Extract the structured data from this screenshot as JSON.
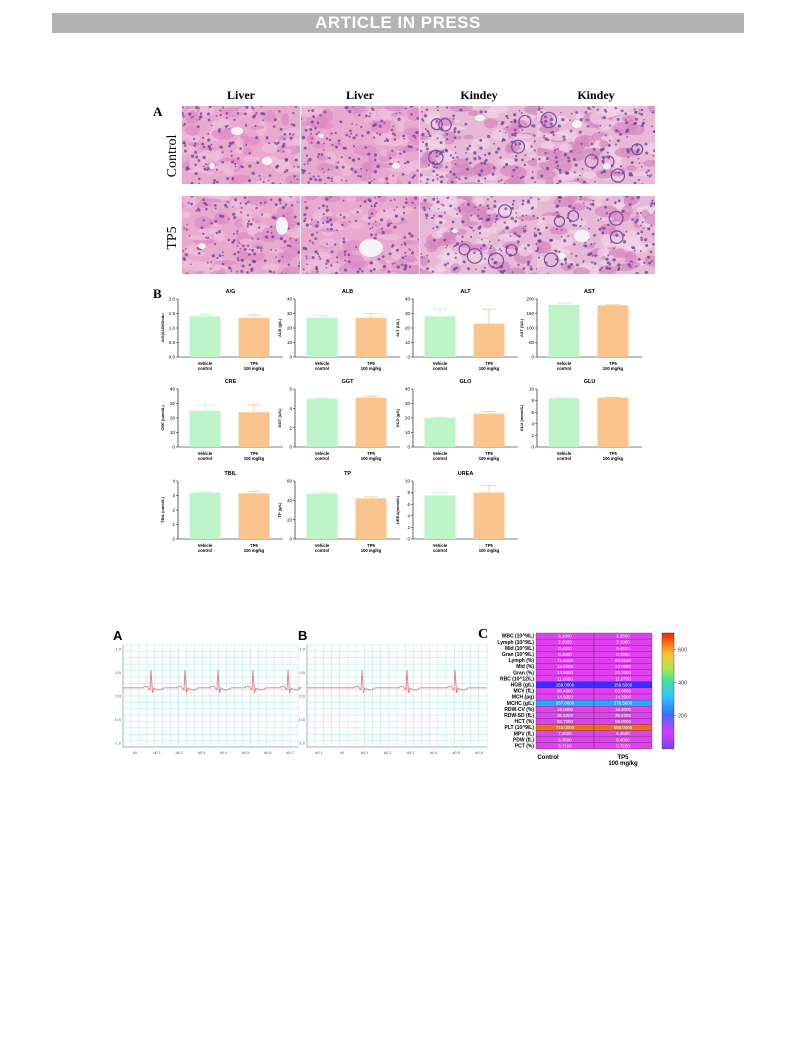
{
  "banner": "ARTICLE IN PRESS",
  "panelA": {
    "letter": "A",
    "columns": [
      "Liver",
      "Liver",
      "Kindey",
      "Kindey"
    ],
    "rows": [
      "Control",
      "TP5"
    ]
  },
  "panelB": {
    "letter": "B",
    "group_labels": [
      "Vehicle\ncontrol",
      "TP5\n100 mg/kg"
    ]
  },
  "chart_data": [
    {
      "type": "bar",
      "title": "A/G",
      "ylabel": "A/G(ALB/Globu",
      "categories": [
        "Vehicle control",
        "TP5 100 mg/kg"
      ],
      "values": [
        1.4,
        1.35
      ],
      "errors": [
        0.07,
        0.1
      ],
      "ylim": [
        0,
        2.0
      ],
      "yticks": [
        "0.0",
        "0.5",
        "1.0",
        "1.5",
        "2.0"
      ]
    },
    {
      "type": "bar",
      "title": "ALB",
      "ylabel": "ALB (g/L)",
      "categories": [
        "Vehicle control",
        "TP5 100 mg/kg"
      ],
      "values": [
        27,
        27
      ],
      "errors": [
        1.5,
        3
      ],
      "ylim": [
        0,
        40
      ],
      "yticks": [
        "0",
        "10",
        "20",
        "30",
        "40"
      ]
    },
    {
      "type": "bar",
      "title": "ALT",
      "ylabel": "ALT (U/L)",
      "categories": [
        "Vehicle control",
        "TP5 100 mg/kg"
      ],
      "values": [
        28,
        23
      ],
      "errors": [
        5,
        10
      ],
      "ylim": [
        0,
        40
      ],
      "yticks": [
        "0",
        "10",
        "20",
        "30",
        "40"
      ]
    },
    {
      "type": "bar",
      "title": "AST",
      "ylabel": "AST (U/L)",
      "categories": [
        "Vehicle control",
        "TP5 100 mg/kg"
      ],
      "values": [
        180,
        178
      ],
      "errors": [
        6,
        2
      ],
      "ylim": [
        0,
        200
      ],
      "yticks": [
        "0",
        "50",
        "100",
        "150",
        "200"
      ]
    },
    {
      "type": "bar",
      "title": "CRE",
      "ylabel": "CRE (umol/L)",
      "categories": [
        "Vehicle control",
        "TP5 100 mg/kg"
      ],
      "values": [
        25,
        24
      ],
      "errors": [
        4,
        5
      ],
      "ylim": [
        0,
        40
      ],
      "yticks": [
        "0",
        "10",
        "20",
        "30",
        "40"
      ]
    },
    {
      "type": "bar",
      "title": "GGT",
      "ylabel": "GGT (U/L)",
      "categories": [
        "Vehicle control",
        "TP5 100 mg/kg"
      ],
      "values": [
        5.0,
        5.1
      ],
      "errors": [
        0.05,
        0.15
      ],
      "ylim": [
        0,
        6
      ],
      "yticks": [
        "0",
        "2",
        "4",
        "6"
      ]
    },
    {
      "type": "bar",
      "title": "GLO",
      "ylabel": "GLO (g/L)",
      "categories": [
        "Vehicle control",
        "TP5 100 mg/kg"
      ],
      "values": [
        20,
        23
      ],
      "errors": [
        0.5,
        1.5
      ],
      "ylim": [
        0,
        40
      ],
      "yticks": [
        "0",
        "10",
        "20",
        "30",
        "40"
      ]
    },
    {
      "type": "bar",
      "title": "GLU",
      "ylabel": "GLU (mmol/L)",
      "categories": [
        "Vehicle control",
        "TP5 100 mg/kg"
      ],
      "values": [
        8.4,
        8.5
      ],
      "errors": [
        0.05,
        0.05
      ],
      "ylim": [
        0,
        10
      ],
      "yticks": [
        "0",
        "2",
        "4",
        "6",
        "8",
        "10"
      ]
    },
    {
      "type": "bar",
      "title": "TBIL",
      "ylabel": "TBIL (umol/L)",
      "categories": [
        "Vehicle control",
        "TP5 100 mg/kg"
      ],
      "values": [
        3.2,
        3.15
      ],
      "errors": [
        0.05,
        0.15
      ],
      "ylim": [
        0,
        4
      ],
      "yticks": [
        "0",
        "1",
        "2",
        "3",
        "4"
      ]
    },
    {
      "type": "bar",
      "title": "TP",
      "ylabel": "TP (g/L)",
      "categories": [
        "Vehicle control",
        "TP5 100 mg/kg"
      ],
      "values": [
        47,
        42
      ],
      "errors": [
        1.5,
        1.5
      ],
      "ylim": [
        0,
        60
      ],
      "yticks": [
        "0",
        "20",
        "40",
        "60"
      ]
    },
    {
      "type": "bar",
      "title": "UREA",
      "ylabel": "UREA(mmol/L)",
      "categories": [
        "Vehicle control",
        "TP5 100 mg/kg"
      ],
      "values": [
        7.5,
        8.0
      ],
      "errors": [
        0.5,
        1.2
      ],
      "ylim": [
        0,
        10
      ],
      "yticks": [
        "0",
        "2",
        "4",
        "6",
        "8",
        "10"
      ]
    }
  ],
  "ecg": {
    "A": {
      "letter": "A",
      "yticks": [
        "1.0",
        "0.5",
        "0.0",
        "-0.5",
        "-1.0"
      ],
      "xticks": [
        "d0",
        "d0.1",
        "d0.2",
        "d0.3",
        "d0.4",
        "d0.5",
        "d0.6",
        "d0.7"
      ]
    },
    "B": {
      "letter": "B",
      "yticks": [
        "1.0",
        "0.5",
        "0.0",
        "-0.5",
        "-1.0"
      ],
      "xticks": [
        "d0.1",
        "d0",
        "d0.1",
        "d0.2",
        "d0.3",
        "d0.4",
        "d0.5",
        "d0.6"
      ]
    }
  },
  "heatmap": {
    "letter": "C",
    "columns": [
      "Control",
      "TP5\n100 mg/kg"
    ],
    "colorbar_ticks": [
      "600",
      "400",
      "200"
    ],
    "rows": [
      {
        "label": "WBC (10^9/L)",
        "values": [
          "3.1000",
          "2.2500"
        ]
      },
      {
        "label": "Lymph (10^9/L)",
        "values": [
          "2.2000",
          "2.1000"
        ]
      },
      {
        "label": "Mid (10^9/L)",
        "values": [
          "0.4000",
          "0.4500"
        ]
      },
      {
        "label": "Gran (10^9/L)",
        "values": [
          "0.3000",
          "0.7000"
        ]
      },
      {
        "label": "Lymph (%)",
        "values": [
          "71.0000",
          "68.0000"
        ]
      },
      {
        "label": "Mid (%)",
        "values": [
          "14.0000",
          "13.0000"
        ]
      },
      {
        "label": "Gran (%)",
        "values": [
          "14.5000",
          "23.3000"
        ]
      },
      {
        "label": "RBC (10^12/L)",
        "values": [
          "11.0000",
          "11.8700"
        ]
      },
      {
        "label": "HGB (g/L)",
        "values": [
          "159.0000",
          "158.5000"
        ]
      },
      {
        "label": "MCV (fL)",
        "values": [
          "50.4000",
          "53.0000"
        ]
      },
      {
        "label": "MCH (pg)",
        "values": [
          "14.5000",
          "14.2000"
        ]
      },
      {
        "label": "MCHC (g/L)",
        "values": [
          "287.0000",
          "270.5000"
        ]
      },
      {
        "label": "RDW-CV (%)",
        "values": [
          "18.0000",
          "18.9000"
        ]
      },
      {
        "label": "RDW-SD (fL)",
        "values": [
          "36.5000",
          "36.5000"
        ]
      },
      {
        "label": "HCT (%)",
        "values": [
          "55.7000",
          "59.0000"
        ]
      },
      {
        "label": "PLT (10^9/L)",
        "values": [
          "710.0000",
          "655.0000"
        ]
      },
      {
        "label": "MPV (fL)",
        "values": [
          "7.2000",
          "6.4500"
        ]
      },
      {
        "label": "PDW (fL)",
        "values": [
          "6.3500",
          "8.4000"
        ]
      },
      {
        "label": "PCT (%)",
        "values": [
          "0.7100",
          "0.7200"
        ]
      }
    ]
  }
}
